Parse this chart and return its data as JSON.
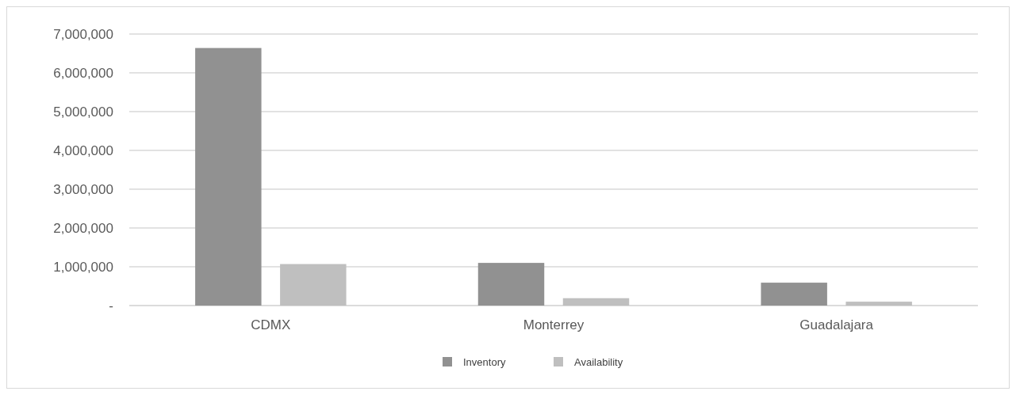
{
  "chart_data": {
    "type": "bar",
    "categories": [
      "CDMX",
      "Monterrey",
      "Guadalajara"
    ],
    "series": [
      {
        "name": "Inventory",
        "color": "#919191",
        "values": [
          6640000,
          1100000,
          590000
        ]
      },
      {
        "name": "Availability",
        "color": "#bfbfbf",
        "values": [
          1070000,
          190000,
          100000
        ]
      }
    ],
    "ylim": [
      0,
      7000000
    ],
    "yticks": [
      {
        "value": 0,
        "label": "-"
      },
      {
        "value": 1000000,
        "label": "1,000,000"
      },
      {
        "value": 2000000,
        "label": "2,000,000"
      },
      {
        "value": 3000000,
        "label": "3,000,000"
      },
      {
        "value": 4000000,
        "label": "4,000,000"
      },
      {
        "value": 5000000,
        "label": "5,000,000"
      },
      {
        "value": 6000000,
        "label": "6,000,000"
      },
      {
        "value": 7000000,
        "label": "7,000,000"
      }
    ],
    "grid": "y",
    "legend": "bottom"
  }
}
